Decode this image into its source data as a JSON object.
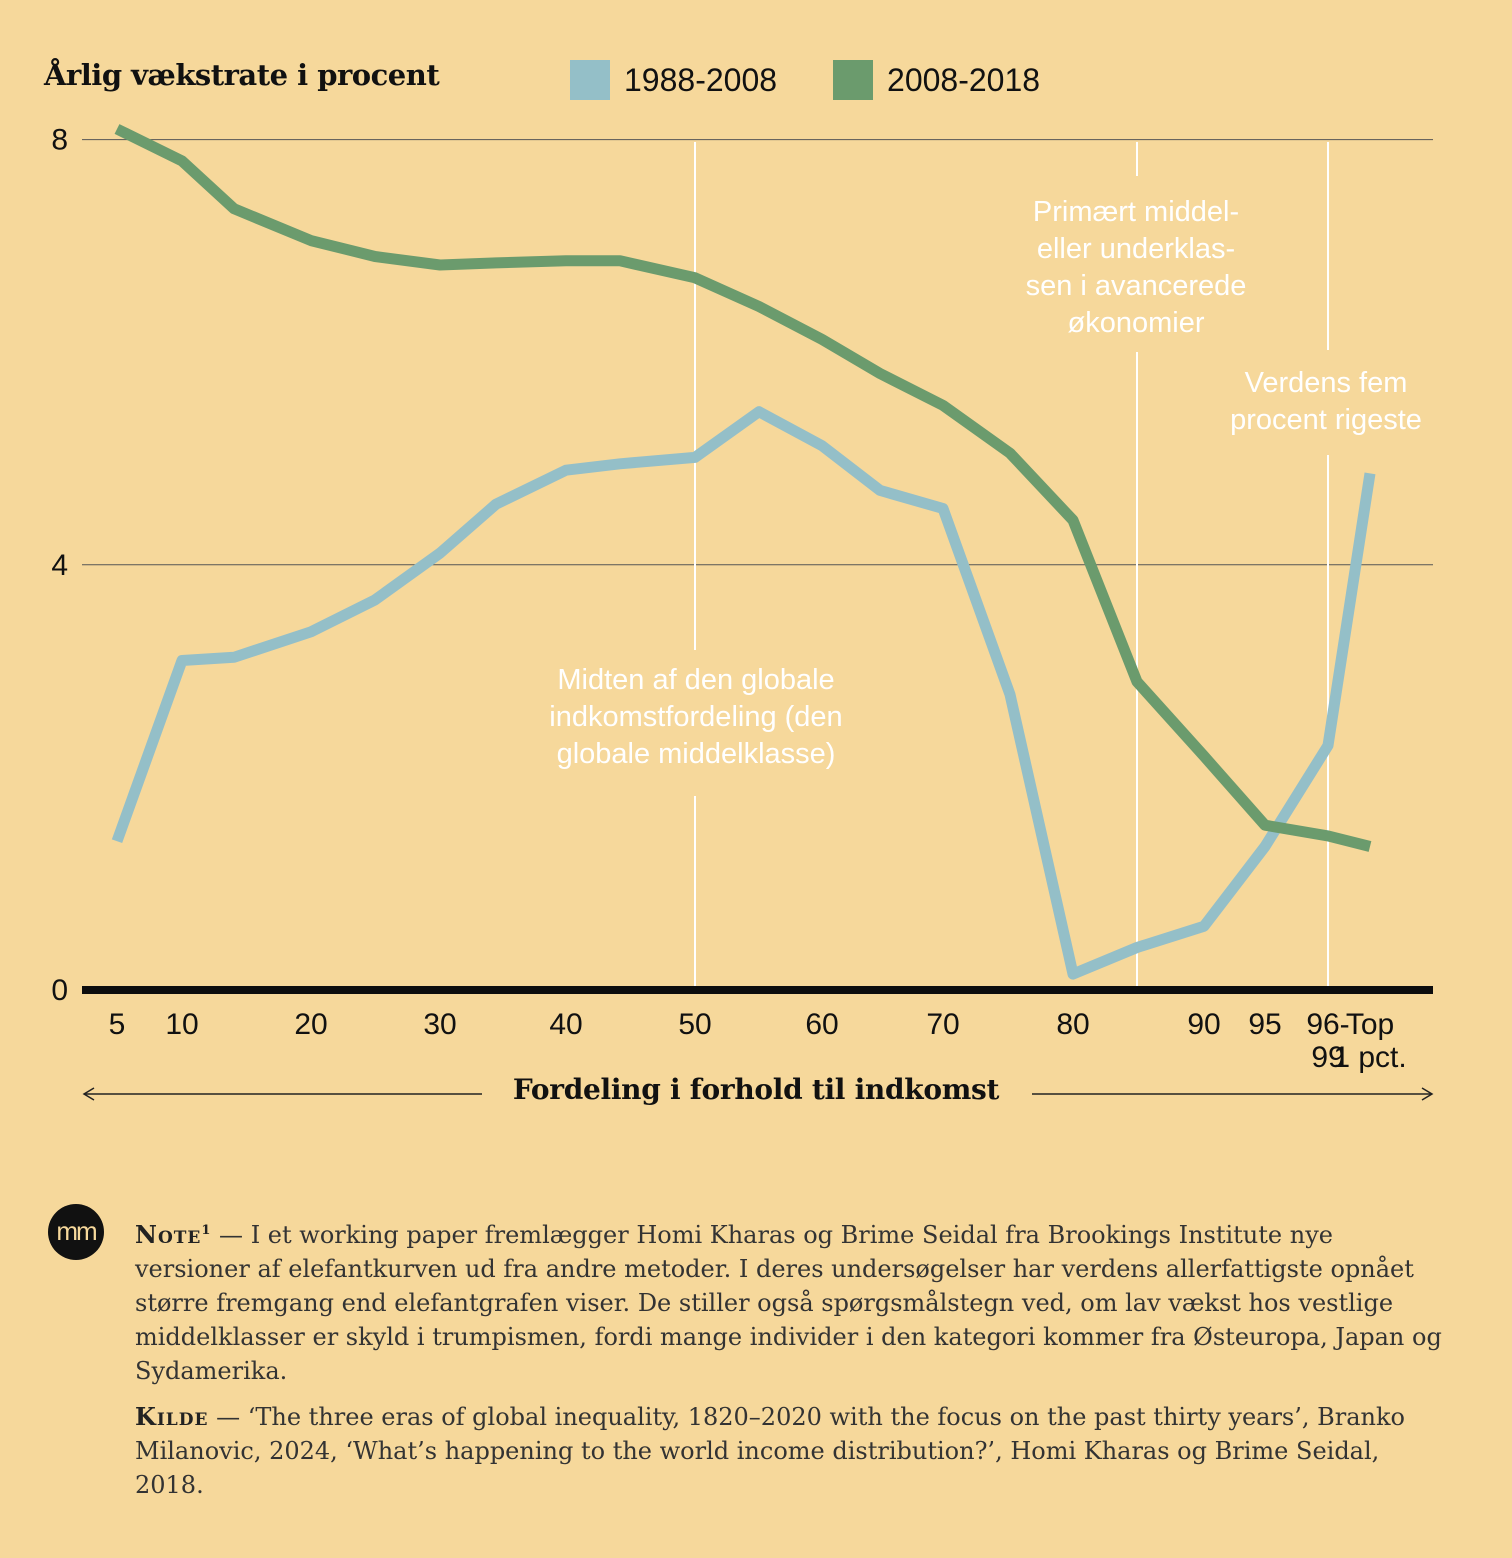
{
  "chart_data": {
    "type": "line",
    "ylabel": "Årlig vækstrate i procent",
    "xlabel": "Fordeling i forhold til indkomst",
    "ylim": [
      0,
      8
    ],
    "yticks": [
      0,
      4,
      8
    ],
    "grid": true,
    "legend_position": "top",
    "x": [
      5,
      10,
      15,
      20,
      25,
      30,
      35,
      40,
      45,
      50,
      55,
      60,
      65,
      70,
      75,
      80,
      85,
      90,
      95,
      96,
      100
    ],
    "xticks": [
      {
        "x": 5,
        "label": "5"
      },
      {
        "x": 10,
        "label": "10"
      },
      {
        "x": 20,
        "label": "20"
      },
      {
        "x": 30,
        "label": "30"
      },
      {
        "x": 40,
        "label": "40"
      },
      {
        "x": 50,
        "label": "50"
      },
      {
        "x": 60,
        "label": "60"
      },
      {
        "x": 70,
        "label": "70"
      },
      {
        "x": 80,
        "label": "80"
      },
      {
        "x": 90,
        "label": "90"
      },
      {
        "x": 95,
        "label": "95"
      },
      {
        "x": 96,
        "label": "96-\n99"
      },
      {
        "x": 100,
        "label": "Top\n1 pct."
      }
    ],
    "series": [
      {
        "name": "1988-2008",
        "color": "#94bfc8",
        "values": [
          1.4,
          3.1,
          3.13,
          3.37,
          3.67,
          4.11,
          4.57,
          4.89,
          4.95,
          5.01,
          5.44,
          5.12,
          4.7,
          4.53,
          2.78,
          0.15,
          0.4,
          0.6,
          1.35,
          2.3,
          4.86
        ]
      },
      {
        "name": "2008-2018",
        "color": "#6b9b6d",
        "values": [
          8.1,
          7.8,
          7.35,
          7.05,
          6.9,
          6.82,
          6.84,
          6.86,
          6.86,
          6.7,
          6.43,
          6.12,
          5.8,
          5.5,
          5.05,
          4.42,
          2.9,
          2.2,
          1.55,
          1.45,
          1.35
        ]
      }
    ],
    "annotations": [
      {
        "text": "Midten af den globale\nindkomstfordeling (den\nglobale middelklasse)",
        "x": 50
      },
      {
        "text": "Primært middel-\neller underklas-\nsen i avancerede\nøkonomier",
        "x": 85
      },
      {
        "text": "Verdens fem\nprocent rigeste",
        "x": 96
      }
    ]
  },
  "notes": {
    "note_label": "Note",
    "note_sup": "1",
    "note_text": "I et working paper fremlægger Homi Kharas og Brime Seidal fra Brookings Institute nye versioner af elefantkurven ud fra andre metoder. I deres undersøgelser har verdens allerfattigste opnået større fremgang end elefantgrafen viser. De stiller også spørgsmålstegn ved, om lav vækst hos vestlige middelklasser er skyld i trumpismen, fordi mange individer i den kategori kommer fra Østeuropa, Japan og Sydamerika.",
    "source_label": "Kilde",
    "source_text": "‘The three eras of global inequality, 1820–2020 with the focus on the past thirty years’, Branko Milanovic, 2024, ‘What’s happening to the world income distribution?’, Homi Kharas og Brime Seidal, 2018."
  },
  "logo": {
    "text": "mm"
  },
  "colors": {
    "background": "#f6d89b",
    "annotation": "#ffffff"
  }
}
